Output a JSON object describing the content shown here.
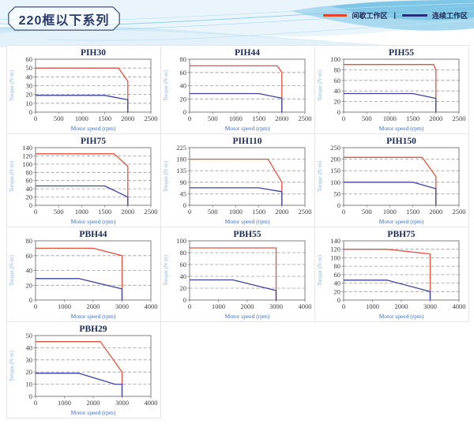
{
  "header": {
    "series_title": "220框以下系列",
    "legend": {
      "intermittent_label": "间歇工作区",
      "continuous_label": "连续工作区",
      "separator": "|",
      "intermittent_color": "#e8402c",
      "continuous_color": "#20307f"
    }
  },
  "chart_common": {
    "red_color": "#e0523f",
    "blue_color": "#3b449c",
    "grid_color": "#9a9a9a",
    "axis_color": "#7f7f7f"
  },
  "chart_data": [
    {
      "type": "line",
      "title": "PIH30",
      "xlabel": "Motor speed (rpm)",
      "ylabel": "Torque (N·m)",
      "xlim": [
        0,
        2500
      ],
      "ylim": [
        0,
        60
      ],
      "xticks": [
        0,
        500,
        1000,
        1500,
        2000,
        2500
      ],
      "yticks": [
        0,
        10,
        20,
        30,
        40,
        50,
        60
      ],
      "grid": "dashed-horizontal",
      "legend_position": "none",
      "series": [
        {
          "name": "间歇工作区",
          "color": "red",
          "points": [
            [
              0,
              50
            ],
            [
              1800,
              50
            ],
            [
              2000,
              35
            ],
            [
              2000,
              0
            ]
          ]
        },
        {
          "name": "连续工作区",
          "color": "blue",
          "points": [
            [
              0,
              19
            ],
            [
              1500,
              19
            ],
            [
              2000,
              14
            ],
            [
              2000,
              0
            ]
          ]
        }
      ]
    },
    {
      "type": "line",
      "title": "PIH44",
      "xlabel": "Motor speed (rpm)",
      "ylabel": "Torque (N·m)",
      "xlim": [
        0,
        2500
      ],
      "ylim": [
        0,
        80
      ],
      "xticks": [
        0,
        500,
        1000,
        1500,
        2000,
        2500
      ],
      "yticks": [
        0,
        20,
        40,
        60,
        80
      ],
      "grid": "dashed-horizontal",
      "legend_position": "none",
      "series": [
        {
          "name": "间歇工作区",
          "color": "red",
          "points": [
            [
              0,
              70
            ],
            [
              1900,
              70
            ],
            [
              2000,
              60
            ],
            [
              2000,
              0
            ]
          ]
        },
        {
          "name": "连续工作区",
          "color": "blue",
          "points": [
            [
              0,
              28
            ],
            [
              1500,
              28
            ],
            [
              2000,
              21
            ],
            [
              2000,
              0
            ]
          ]
        }
      ]
    },
    {
      "type": "line",
      "title": "PIH55",
      "xlabel": "Motor speed (rpm)",
      "ylabel": "Torque (N·m)",
      "xlim": [
        0,
        2500
      ],
      "ylim": [
        0,
        100
      ],
      "xticks": [
        0,
        500,
        1000,
        1500,
        2000,
        2500
      ],
      "yticks": [
        0,
        20,
        40,
        60,
        80,
        100
      ],
      "grid": "dashed-horizontal",
      "legend_position": "none",
      "series": [
        {
          "name": "间歇工作区",
          "color": "red",
          "points": [
            [
              0,
              90
            ],
            [
              1950,
              90
            ],
            [
              2000,
              80
            ],
            [
              2000,
              0
            ]
          ]
        },
        {
          "name": "连续工作区",
          "color": "blue",
          "points": [
            [
              0,
              35
            ],
            [
              1500,
              35
            ],
            [
              2000,
              26
            ],
            [
              2000,
              0
            ]
          ]
        }
      ]
    },
    {
      "type": "line",
      "title": "PIH75",
      "xlabel": "Motor speed (rpm)",
      "ylabel": "Torque (N·m)",
      "xlim": [
        0,
        2500
      ],
      "ylim": [
        0,
        140
      ],
      "xticks": [
        0,
        500,
        1000,
        1500,
        2000,
        2500
      ],
      "yticks": [
        0,
        20,
        40,
        60,
        80,
        100,
        120,
        140
      ],
      "grid": "dashed-horizontal",
      "legend_position": "none",
      "series": [
        {
          "name": "间歇工作区",
          "color": "red",
          "points": [
            [
              0,
              125
            ],
            [
              1700,
              125
            ],
            [
              2000,
              95
            ],
            [
              2000,
              0
            ]
          ]
        },
        {
          "name": "连续工作区",
          "color": "blue",
          "points": [
            [
              0,
              47
            ],
            [
              1500,
              47
            ],
            [
              2000,
              20
            ],
            [
              2000,
              0
            ]
          ]
        }
      ]
    },
    {
      "type": "line",
      "title": "PIH110",
      "xlabel": "Motor speed (rpm)",
      "ylabel": "Torque (N·m)",
      "xlim": [
        0,
        2500
      ],
      "ylim": [
        0,
        225
      ],
      "xticks": [
        0,
        500,
        1000,
        1500,
        2000,
        2500
      ],
      "yticks": [
        0,
        45,
        90,
        135,
        180,
        225
      ],
      "grid": "dashed-horizontal",
      "legend_position": "none",
      "series": [
        {
          "name": "间歇工作区",
          "color": "red",
          "points": [
            [
              0,
              180
            ],
            [
              1700,
              180
            ],
            [
              2000,
              90
            ],
            [
              2000,
              0
            ]
          ]
        },
        {
          "name": "连续工作区",
          "color": "blue",
          "points": [
            [
              0,
              68
            ],
            [
              1500,
              68
            ],
            [
              2000,
              53
            ],
            [
              2000,
              0
            ]
          ]
        }
      ]
    },
    {
      "type": "line",
      "title": "PIH150",
      "xlabel": "Motor speed (rpm)",
      "ylabel": "Torque (N·m)",
      "xlim": [
        0,
        2500
      ],
      "ylim": [
        0,
        250
      ],
      "xticks": [
        0,
        500,
        1000,
        1500,
        2000,
        2500
      ],
      "yticks": [
        0,
        50,
        100,
        150,
        200,
        250
      ],
      "grid": "dashed-horizontal",
      "legend_position": "none",
      "series": [
        {
          "name": "间歇工作区",
          "color": "red",
          "points": [
            [
              0,
              208
            ],
            [
              1700,
              208
            ],
            [
              2000,
              125
            ],
            [
              2000,
              0
            ]
          ]
        },
        {
          "name": "连续工作区",
          "color": "blue",
          "points": [
            [
              0,
              100
            ],
            [
              1500,
              100
            ],
            [
              2000,
              72
            ],
            [
              2000,
              0
            ]
          ]
        }
      ]
    },
    {
      "type": "line",
      "title": "PBH44",
      "xlabel": "Motor speed (rpm)",
      "ylabel": "Torque (N·m)",
      "xlim": [
        0,
        4000
      ],
      "ylim": [
        0,
        80
      ],
      "xticks": [
        0,
        1000,
        2000,
        3000,
        4000
      ],
      "yticks": [
        0,
        20,
        40,
        60,
        80
      ],
      "grid": "dashed-horizontal",
      "legend_position": "none",
      "series": [
        {
          "name": "间歇工作区",
          "color": "red",
          "points": [
            [
              0,
              70
            ],
            [
              2000,
              70
            ],
            [
              3000,
              60
            ],
            [
              3000,
              0
            ]
          ]
        },
        {
          "name": "连续工作区",
          "color": "blue",
          "points": [
            [
              0,
              29
            ],
            [
              1500,
              29
            ],
            [
              3000,
              15
            ],
            [
              3000,
              0
            ]
          ]
        }
      ]
    },
    {
      "type": "line",
      "title": "PBH55",
      "xlabel": "Motor speed (rpm)",
      "ylabel": "Torque (N·m)",
      "xlim": [
        0,
        4000
      ],
      "ylim": [
        0,
        100
      ],
      "xticks": [
        0,
        1000,
        2000,
        3000,
        4000
      ],
      "yticks": [
        0,
        20,
        40,
        60,
        80,
        100
      ],
      "grid": "dashed-horizontal",
      "legend_position": "none",
      "series": [
        {
          "name": "间歇工作区",
          "color": "red",
          "points": [
            [
              0,
              88
            ],
            [
              3000,
              88
            ],
            [
              3000,
              0
            ]
          ]
        },
        {
          "name": "连续工作区",
          "color": "blue",
          "points": [
            [
              0,
              34
            ],
            [
              1500,
              34
            ],
            [
              3000,
              16
            ],
            [
              3000,
              0
            ]
          ]
        }
      ]
    },
    {
      "type": "line",
      "title": "PBH75",
      "xlabel": "Motor speed (rpm)",
      "ylabel": "Torque (N·m)",
      "xlim": [
        0,
        4000
      ],
      "ylim": [
        0,
        140
      ],
      "xticks": [
        0,
        1000,
        2000,
        3000,
        4000
      ],
      "yticks": [
        0,
        20,
        40,
        60,
        80,
        100,
        120,
        140
      ],
      "grid": "dashed-horizontal",
      "legend_position": "none",
      "series": [
        {
          "name": "间歇工作区",
          "color": "red",
          "points": [
            [
              0,
              120
            ],
            [
              1500,
              120
            ],
            [
              3000,
              109
            ],
            [
              3000,
              0
            ]
          ]
        },
        {
          "name": "连续工作区",
          "color": "blue",
          "points": [
            [
              0,
              47
            ],
            [
              1500,
              47
            ],
            [
              3000,
              20
            ],
            [
              3000,
              0
            ]
          ]
        }
      ]
    },
    {
      "type": "line",
      "title": "PBH29",
      "xlabel": "Motor speed (rpm)",
      "ylabel": "Torque (N·m)",
      "xlim": [
        0,
        4000
      ],
      "ylim": [
        0,
        50
      ],
      "xticks": [
        0,
        1000,
        2000,
        3000,
        4000
      ],
      "yticks": [
        0,
        10,
        20,
        30,
        40,
        50
      ],
      "grid": "dashed-horizontal",
      "legend_position": "none",
      "series": [
        {
          "name": "间歇工作区",
          "color": "red",
          "points": [
            [
              0,
              45
            ],
            [
              2250,
              45
            ],
            [
              3000,
              20
            ],
            [
              3000,
              0
            ]
          ]
        },
        {
          "name": "连续工作区",
          "color": "blue",
          "points": [
            [
              0,
              19
            ],
            [
              1500,
              19
            ],
            [
              2750,
              10
            ],
            [
              3000,
              10
            ],
            [
              3000,
              0
            ]
          ]
        }
      ]
    }
  ]
}
